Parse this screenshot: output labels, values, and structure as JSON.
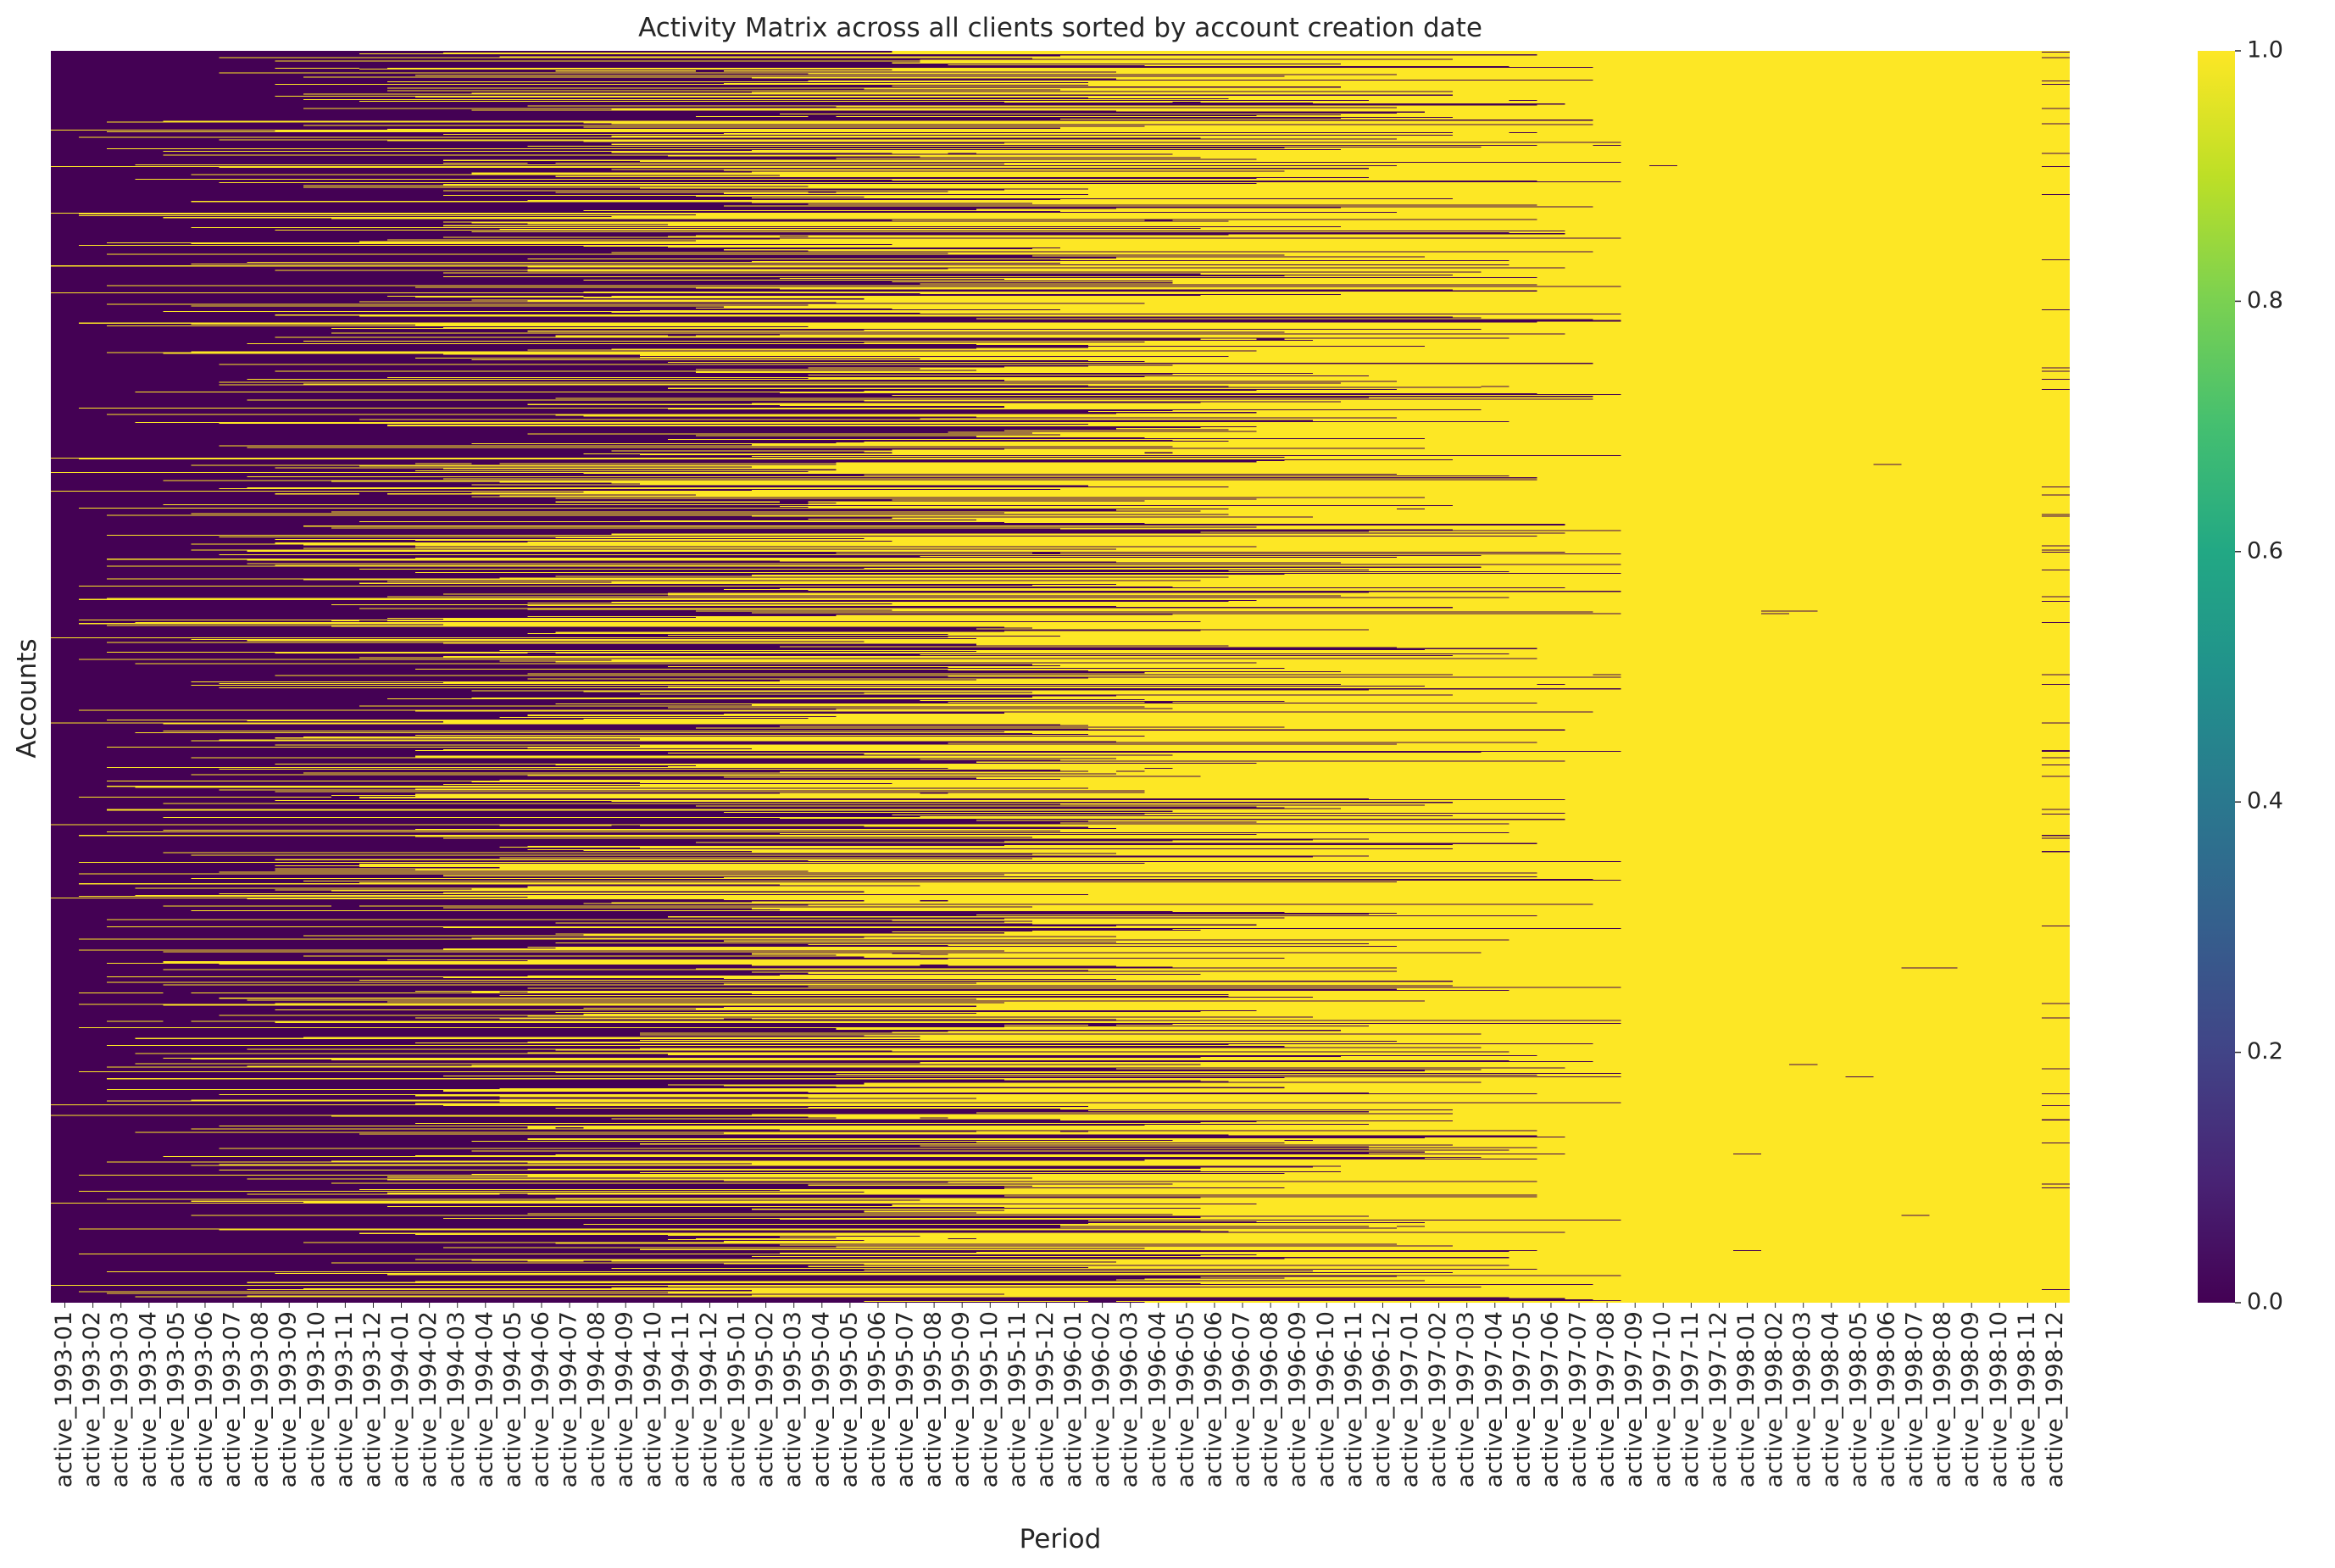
{
  "chart_data": {
    "type": "heatmap",
    "title": "Activity Matrix across all clients sorted by account creation date",
    "xlabel": "Period",
    "ylabel": "Accounts",
    "x_categories": [
      "active_1993-01",
      "active_1993-02",
      "active_1993-03",
      "active_1993-04",
      "active_1993-05",
      "active_1993-06",
      "active_1993-07",
      "active_1993-08",
      "active_1993-09",
      "active_1993-10",
      "active_1993-11",
      "active_1993-12",
      "active_1994-01",
      "active_1994-02",
      "active_1994-03",
      "active_1994-04",
      "active_1994-05",
      "active_1994-06",
      "active_1994-07",
      "active_1994-08",
      "active_1994-09",
      "active_1994-10",
      "active_1994-11",
      "active_1994-12",
      "active_1995-01",
      "active_1995-02",
      "active_1995-03",
      "active_1995-04",
      "active_1995-05",
      "active_1995-06",
      "active_1995-07",
      "active_1995-08",
      "active_1995-09",
      "active_1995-10",
      "active_1995-11",
      "active_1995-12",
      "active_1996-01",
      "active_1996-02",
      "active_1996-03",
      "active_1996-04",
      "active_1996-05",
      "active_1996-06",
      "active_1996-07",
      "active_1996-08",
      "active_1996-09",
      "active_1996-10",
      "active_1996-11",
      "active_1996-12",
      "active_1997-01",
      "active_1997-02",
      "active_1997-03",
      "active_1997-04",
      "active_1997-05",
      "active_1997-06",
      "active_1997-07",
      "active_1997-08",
      "active_1997-09",
      "active_1997-10",
      "active_1997-11",
      "active_1997-12",
      "active_1998-01",
      "active_1998-02",
      "active_1998-03",
      "active_1998-04",
      "active_1998-05",
      "active_1998-06",
      "active_1998-07",
      "active_1998-08",
      "active_1998-09",
      "active_1998-10",
      "active_1998-11",
      "active_1998-12"
    ],
    "x_tick_labels_shown": [
      "active_1993-01",
      "active_1993-02",
      "active_1993-03",
      "active_1993-04",
      "active_1993-05",
      "active_1993-06",
      "active_1993-07",
      "active_1993-08",
      "active_1993-09",
      "active_1993-10",
      "active_1993-11",
      "active_1993-12",
      "active_1994-01",
      "active_1994-02",
      "active_1994-03",
      "active_1994-04",
      "active_1994-05",
      "active_1994-06",
      "active_1994-07",
      "active_1994-08",
      "active_1994-09",
      "active_1994-10",
      "active_1994-11",
      "active_1994-12",
      "active_1995-01",
      "active_1995-02",
      "active_1995-03",
      "active_1995-04",
      "active_1995-05",
      "active_1995-06",
      "active_1995-07",
      "active_1995-08",
      "active_1995-09",
      "active_1995-10",
      "active_1995-11",
      "active_1995-12",
      "active_1996-01",
      "active_1996-02",
      "active_1996-03",
      "active_1996-04",
      "active_1996-05",
      "active_1996-06",
      "active_1996-07",
      "active_1996-08",
      "active_1996-09",
      "active_1996-10",
      "active_1996-11",
      "active_1996-12",
      "active_1997-01",
      "active_1997-02",
      "active_1997-03",
      "active_1997-04",
      "active_1997-05",
      "active_1997-06",
      "active_1997-07",
      "active_1997-08",
      "active_1997-09",
      "active_1997-10",
      "active_1997-11",
      "active_1997-12",
      "active_1998-01",
      "active_1998-02",
      "active_1998-03",
      "active_1998-04",
      "active_1998-05",
      "active_1998-06",
      "active_1998-07",
      "active_1998-08",
      "active_1998-09",
      "active_1998-10",
      "active_1998-11",
      "active_1998-12"
    ],
    "value_range": [
      0.0,
      1.0
    ],
    "colormap": "viridis",
    "colorbar_ticks": [
      "0.0",
      "0.2",
      "0.4",
      "0.6",
      "0.8",
      "1.0"
    ],
    "colorbar_tick_values": [
      0.0,
      0.2,
      0.4,
      0.6,
      0.8,
      1.0
    ],
    "grid": false,
    "colors": {
      "low": "#440154",
      "high": "#fde725"
    }
  }
}
